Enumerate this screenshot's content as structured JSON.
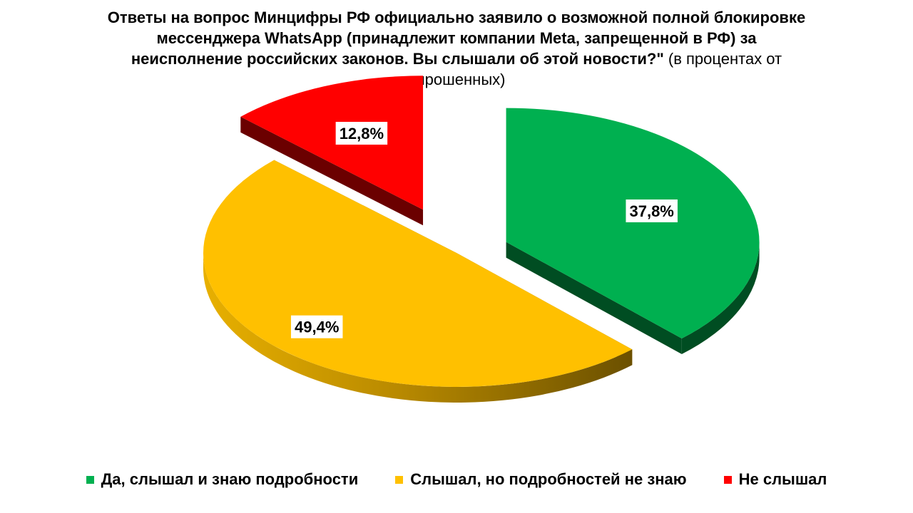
{
  "chart_data": {
    "type": "pie",
    "title": "Ответы на вопрос Минцифры РФ официально заявило о возможной полной блокировке мессенджера WhatsApp (принадлежит компании Meta, запрещенной в РФ) за неисполнение российских законов. Вы слышали об этой новости?\"",
    "subtitle": "(в процентах от опрошенных)",
    "categories": [
      "Да, слышал и знаю подробности",
      "Слышал, но подробностей не знаю",
      "Не слышал"
    ],
    "values": [
      37.8,
      49.4,
      12.8
    ],
    "data_labels": [
      "37,8%",
      "49,4%",
      "12,8%"
    ],
    "colors": [
      "#00B050",
      "#FFC000",
      "#FF0000"
    ],
    "legend_position": "bottom",
    "style": "3d-exploded"
  }
}
